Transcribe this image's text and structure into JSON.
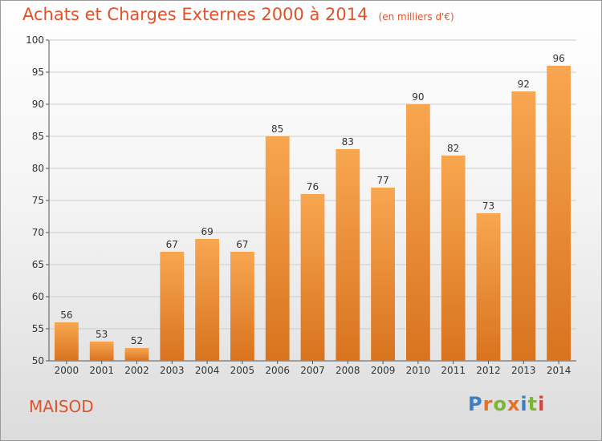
{
  "chart_data": {
    "type": "bar",
    "title": "Achats et Charges Externes 2000 à 2014",
    "subtitle": "(en milliers d'€)",
    "categories": [
      "2000",
      "2001",
      "2002",
      "2003",
      "2004",
      "2005",
      "2006",
      "2007",
      "2008",
      "2009",
      "2010",
      "2011",
      "2012",
      "2013",
      "2014"
    ],
    "values": [
      56,
      53,
      52,
      67,
      69,
      67,
      85,
      76,
      83,
      77,
      90,
      82,
      73,
      92,
      96
    ],
    "ylim": [
      50,
      100
    ],
    "yticks": [
      50,
      55,
      60,
      65,
      70,
      75,
      80,
      85,
      90,
      95,
      100
    ],
    "grid": true,
    "bar_color_top": "#f8a651",
    "bar_color_bottom": "#d9731e"
  },
  "commune": "MAISOD",
  "logo": {
    "letters": [
      "P",
      "r",
      "o",
      "x",
      "i",
      "t",
      "i"
    ],
    "colors": [
      "#3b7fc4",
      "#e3732a",
      "#7ab830",
      "#e3732a",
      "#3b7fc4",
      "#7ab830",
      "#d6453a"
    ]
  },
  "colors": {
    "accent": "#e0522a",
    "grid": "#cccccc",
    "axis": "#555555"
  }
}
